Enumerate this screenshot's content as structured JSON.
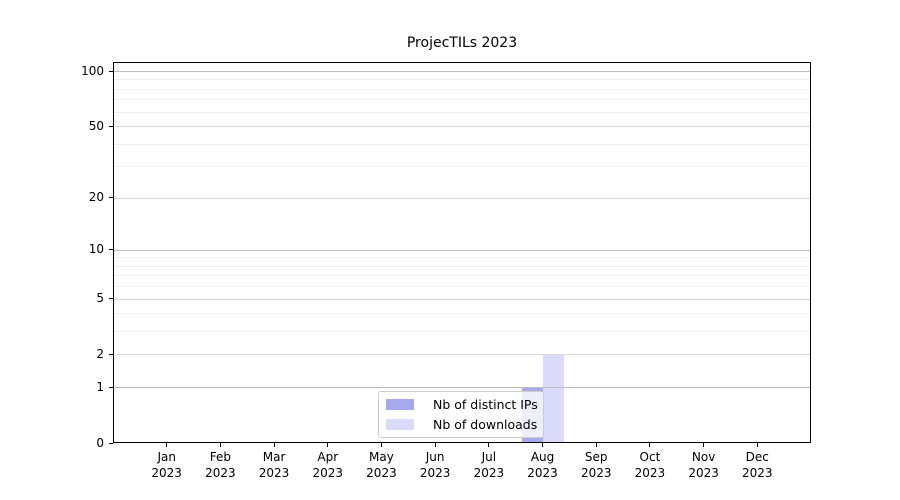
{
  "chart_data": {
    "type": "bar",
    "title": "ProjecTILs 2023",
    "x_ticks": [
      {
        "month": "Jan",
        "year": "2023"
      },
      {
        "month": "Feb",
        "year": "2023"
      },
      {
        "month": "Mar",
        "year": "2023"
      },
      {
        "month": "Apr",
        "year": "2023"
      },
      {
        "month": "May",
        "year": "2023"
      },
      {
        "month": "Jun",
        "year": "2023"
      },
      {
        "month": "Jul",
        "year": "2023"
      },
      {
        "month": "Aug",
        "year": "2023"
      },
      {
        "month": "Sep",
        "year": "2023"
      },
      {
        "month": "Oct",
        "year": "2023"
      },
      {
        "month": "Nov",
        "year": "2023"
      },
      {
        "month": "Dec",
        "year": "2023"
      }
    ],
    "series": [
      {
        "name": "Nb of distinct IPs",
        "color": "#a8a8ec",
        "values": [
          0,
          0,
          0,
          0,
          0,
          0,
          0,
          1,
          0,
          0,
          0,
          0
        ]
      },
      {
        "name": "Nb of downloads",
        "color": "#d9d9f8",
        "values": [
          0,
          0,
          0,
          0,
          0,
          0,
          0,
          2,
          0,
          0,
          0,
          0
        ]
      }
    ],
    "yscale": "log1p",
    "ylim": [
      0,
      112
    ],
    "ytick_values": [
      0,
      1,
      2,
      5,
      10,
      20,
      50,
      100
    ],
    "ytick_labels": [
      "0",
      "1",
      "2",
      "5",
      "10",
      "20",
      "50",
      "100"
    ],
    "gridlines": [
      {
        "level": "major",
        "color": "#bdbdbd",
        "values": [
          1,
          10,
          100
        ]
      },
      {
        "level": "mid",
        "color": "#d9d9d9",
        "values": [
          2,
          5,
          20,
          50
        ]
      },
      {
        "level": "minor",
        "color": "#f0f0f0",
        "values": [
          3,
          4,
          6,
          7,
          8,
          9,
          30,
          40,
          60,
          70,
          80,
          90
        ]
      }
    ],
    "legend": {
      "position": "bottom-center",
      "entries": [
        "Nb of distinct IPs",
        "Nb of downloads"
      ]
    },
    "grid": true,
    "xlabel": "",
    "ylabel": ""
  },
  "colors": {
    "spine": "#000000",
    "legend_border": "#cccccc",
    "text": "#000000",
    "background": "#ffffff"
  }
}
